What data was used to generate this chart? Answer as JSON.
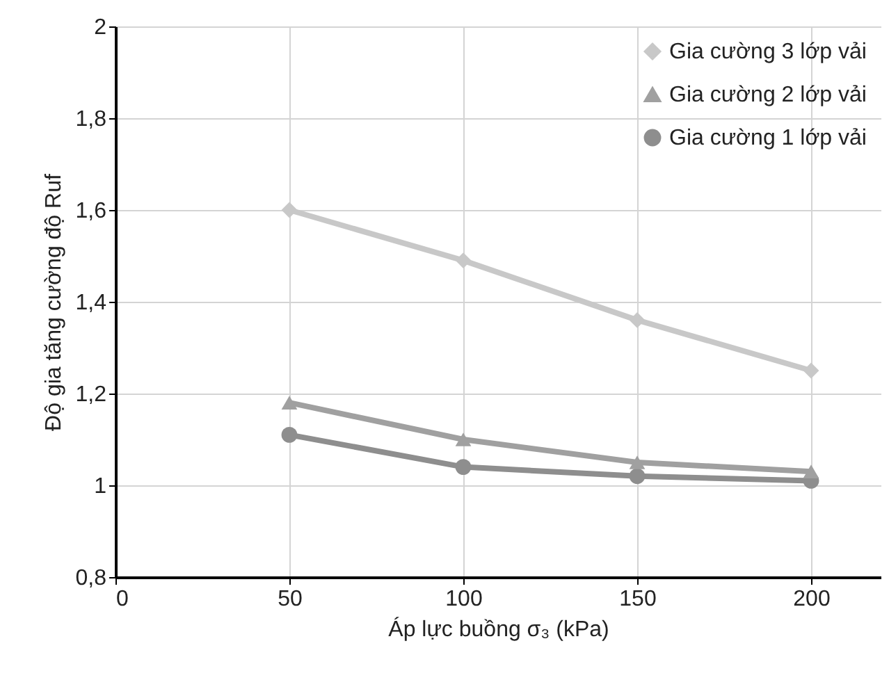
{
  "chart_data": {
    "type": "line",
    "xlabel": "Áp lực buồng σ₃ (kPa)",
    "ylabel": "Độ gia tăng cường độ Ruf",
    "x": [
      50,
      100,
      150,
      200
    ],
    "series": [
      {
        "name": "Gia cường 3 lớp vải",
        "color": "#c8c8c8",
        "marker": "diamond",
        "values": [
          1.6,
          1.49,
          1.36,
          1.25
        ]
      },
      {
        "name": "Gia cường 2 lớp vải",
        "color": "#a0a0a0",
        "marker": "triangle",
        "values": [
          1.18,
          1.1,
          1.05,
          1.03
        ]
      },
      {
        "name": "Gia cường 1 lớp vải",
        "color": "#8e8e8e",
        "marker": "circle",
        "values": [
          1.11,
          1.04,
          1.02,
          1.01
        ]
      }
    ],
    "xlim": [
      0,
      220
    ],
    "xticks": [
      0,
      50,
      100,
      150,
      200
    ],
    "ylim": [
      0.8,
      2
    ],
    "yticks": [
      {
        "value": 0.8,
        "label": "0,8"
      },
      {
        "value": 1,
        "label": "1"
      },
      {
        "value": 1.2,
        "label": "1,2"
      },
      {
        "value": 1.4,
        "label": "1,4"
      },
      {
        "value": 1.6,
        "label": "1,6"
      },
      {
        "value": 1.8,
        "label": "1,8"
      },
      {
        "value": 2,
        "label": "2"
      }
    ],
    "grid": true,
    "legend": "top right",
    "line_style": "solid"
  }
}
